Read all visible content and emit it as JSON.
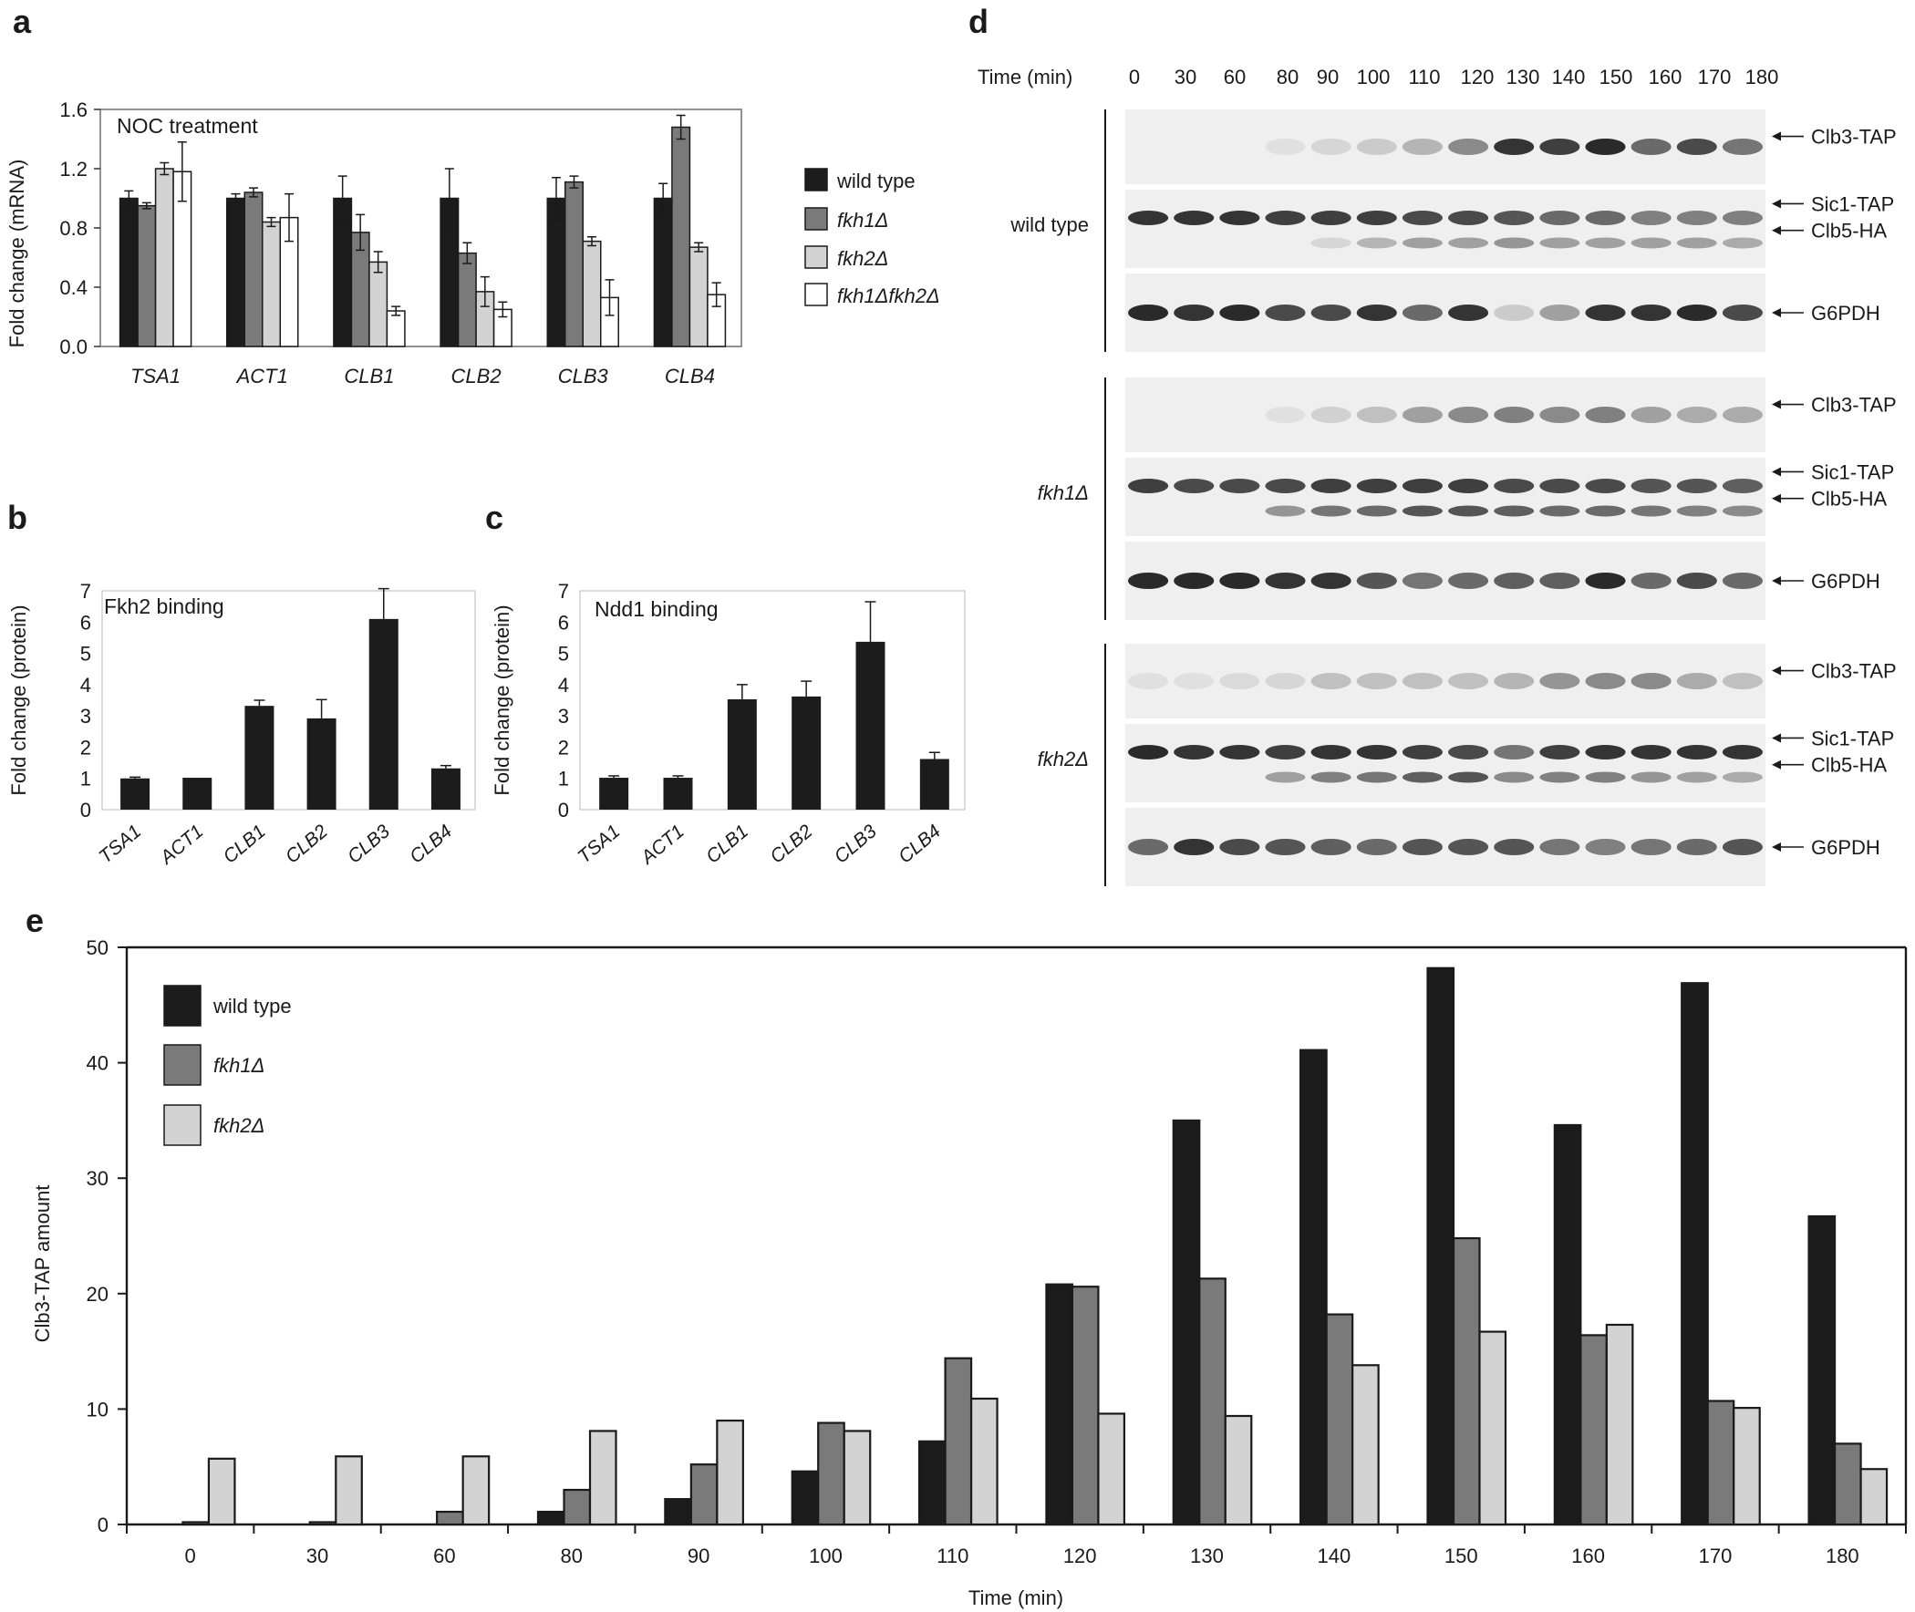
{
  "panel_labels": {
    "a": "a",
    "b": "b",
    "c": "c",
    "d": "d",
    "e": "e"
  },
  "colors": {
    "wild_type": "#1c1c1c",
    "fkh1": "#7a7a7a",
    "fkh2": "#d3d3d3",
    "fkh1fkh2": "#ffffff",
    "axis": "#333333"
  },
  "chart_data": [
    {
      "id": "a",
      "type": "bar",
      "title": "NOC  treatment",
      "ylabel": "Fold change (mRNA)",
      "xlabel": "",
      "ylim": [
        0,
        1.6
      ],
      "yticks": [
        "0.0",
        "0.4",
        "0.8",
        "1.2",
        "1.6"
      ],
      "categories": [
        "TSA1",
        "ACT1",
        "CLB1",
        "CLB2",
        "CLB3",
        "CLB4"
      ],
      "series": [
        {
          "name": "wild type",
          "values": [
            1.0,
            1.0,
            1.0,
            1.0,
            1.0,
            1.0
          ],
          "errors": [
            0.05,
            0.03,
            0.15,
            0.2,
            0.14,
            0.1
          ]
        },
        {
          "name": "fkh1Δ",
          "values": [
            0.95,
            1.04,
            0.77,
            0.63,
            1.11,
            1.48
          ],
          "errors": [
            0.02,
            0.03,
            0.12,
            0.07,
            0.04,
            0.08
          ]
        },
        {
          "name": "fkh2Δ",
          "values": [
            1.2,
            0.84,
            0.57,
            0.37,
            0.71,
            0.67
          ],
          "errors": [
            0.04,
            0.03,
            0.07,
            0.1,
            0.03,
            0.03
          ]
        },
        {
          "name": "fkh1Δfkh2Δ",
          "values": [
            1.18,
            0.87,
            0.24,
            0.25,
            0.33,
            0.35
          ],
          "errors": [
            0.2,
            0.16,
            0.03,
            0.05,
            0.12,
            0.08
          ]
        }
      ],
      "legend_position": "right"
    },
    {
      "id": "b",
      "type": "bar",
      "title": "Fkh2 binding",
      "ylabel": "Fold change (protein)",
      "xlabel": "",
      "ylim": [
        0,
        7
      ],
      "yticks": [
        "0",
        "1",
        "2",
        "3",
        "4",
        "5",
        "6",
        "7"
      ],
      "categories": [
        "TSA1",
        "ACT1",
        "CLB1",
        "CLB2",
        "CLB3",
        "CLB4"
      ],
      "values": [
        1.0,
        1.02,
        3.32,
        2.92,
        6.1,
        1.32
      ],
      "errors": [
        0.04,
        0,
        0.18,
        0.6,
        0.97,
        0.09
      ]
    },
    {
      "id": "c",
      "type": "bar",
      "title": "Ndd1 binding",
      "ylabel": "Fold change (protein)",
      "xlabel": "",
      "ylim": [
        0,
        7
      ],
      "yticks": [
        "0",
        "1",
        "2",
        "3",
        "4",
        "5",
        "6",
        "7"
      ],
      "categories": [
        "TSA1",
        "ACT1",
        "CLB1",
        "CLB2",
        "CLB3",
        "CLB4"
      ],
      "values": [
        1.02,
        1.02,
        3.53,
        3.62,
        5.37,
        1.62
      ],
      "errors": [
        0.06,
        0.06,
        0.47,
        0.49,
        1.28,
        0.21
      ]
    },
    {
      "id": "e",
      "type": "bar",
      "title": "",
      "ylabel": "Clb3-TAP amount",
      "xlabel": "Time (min)",
      "ylim": [
        0,
        50
      ],
      "yticks": [
        "0",
        "10",
        "20",
        "30",
        "40",
        "50"
      ],
      "categories": [
        "0",
        "30",
        "60",
        "80",
        "90",
        "100",
        "110",
        "120",
        "130",
        "140",
        "150",
        "160",
        "170",
        "180"
      ],
      "series": [
        {
          "name": "wild type",
          "values": [
            0,
            0,
            0,
            1.1,
            2.2,
            4.6,
            7.2,
            20.8,
            35.0,
            41.1,
            48.2,
            34.6,
            46.9,
            26.7
          ]
        },
        {
          "name": "fkh1Δ",
          "values": [
            0.2,
            0.2,
            1.1,
            3.0,
            5.2,
            8.8,
            14.4,
            20.6,
            21.3,
            18.2,
            24.8,
            16.4,
            10.7,
            7.0
          ]
        },
        {
          "name": "fkh2Δ",
          "values": [
            5.7,
            5.9,
            5.9,
            8.1,
            9.0,
            8.1,
            10.9,
            9.6,
            9.4,
            13.8,
            16.7,
            17.3,
            10.1,
            4.8
          ]
        }
      ],
      "legend_position": "top-left"
    }
  ],
  "blot": {
    "time_label": "Time (min)",
    "times": [
      "0",
      "30",
      "60",
      "80",
      "90",
      "100",
      "110",
      "120",
      "130",
      "140",
      "150",
      "160",
      "170",
      "180"
    ],
    "groups": [
      {
        "name": "wild type",
        "italic": false,
        "labels": [
          "Clb3-TAP",
          "Sic1-TAP",
          "Clb5-HA",
          "G6PDH"
        ]
      },
      {
        "name": "fkh1Δ",
        "italic": true,
        "labels": [
          "Clb3-TAP",
          "Sic1-TAP",
          "Clb5-HA",
          "G6PDH"
        ]
      },
      {
        "name": "fkh2Δ",
        "italic": true,
        "labels": [
          "Clb3-TAP",
          "Sic1-TAP",
          "Clb5-HA",
          "G6PDH"
        ]
      }
    ],
    "intensity": {
      "wild type": {
        "clb3": [
          0,
          0,
          0,
          0.05,
          0.1,
          0.15,
          0.25,
          0.45,
          0.85,
          0.8,
          0.9,
          0.6,
          0.75,
          0.55
        ],
        "sic1": [
          0.85,
          0.85,
          0.85,
          0.8,
          0.8,
          0.8,
          0.75,
          0.75,
          0.7,
          0.6,
          0.6,
          0.5,
          0.5,
          0.5
        ],
        "clb5": [
          0,
          0,
          0,
          0,
          0.1,
          0.25,
          0.35,
          0.35,
          0.4,
          0.35,
          0.35,
          0.35,
          0.35,
          0.3
        ],
        "g6pdh": [
          0.9,
          0.85,
          0.9,
          0.75,
          0.75,
          0.85,
          0.6,
          0.85,
          0.15,
          0.35,
          0.85,
          0.85,
          0.9,
          0.75
        ]
      },
      "fkh1Δ": {
        "clb3": [
          0,
          0,
          0,
          0.05,
          0.12,
          0.2,
          0.35,
          0.45,
          0.5,
          0.45,
          0.5,
          0.35,
          0.3,
          0.3
        ],
        "sic1": [
          0.8,
          0.75,
          0.75,
          0.75,
          0.8,
          0.8,
          0.8,
          0.8,
          0.75,
          0.75,
          0.75,
          0.7,
          0.7,
          0.65
        ],
        "clb5": [
          0,
          0,
          0,
          0.4,
          0.55,
          0.6,
          0.7,
          0.7,
          0.65,
          0.6,
          0.6,
          0.55,
          0.5,
          0.45
        ],
        "g6pdh": [
          0.9,
          0.9,
          0.9,
          0.85,
          0.85,
          0.7,
          0.55,
          0.6,
          0.65,
          0.65,
          0.9,
          0.6,
          0.75,
          0.6
        ]
      },
      "fkh2Δ": {
        "clb3": [
          0.05,
          0.05,
          0.08,
          0.1,
          0.2,
          0.2,
          0.2,
          0.2,
          0.25,
          0.4,
          0.45,
          0.45,
          0.3,
          0.2
        ],
        "sic1": [
          0.9,
          0.85,
          0.85,
          0.8,
          0.85,
          0.85,
          0.8,
          0.75,
          0.55,
          0.8,
          0.85,
          0.85,
          0.85,
          0.85
        ],
        "clb5": [
          0,
          0,
          0,
          0.35,
          0.5,
          0.55,
          0.65,
          0.7,
          0.45,
          0.5,
          0.5,
          0.4,
          0.35,
          0.3
        ],
        "g6pdh": [
          0.6,
          0.85,
          0.75,
          0.7,
          0.65,
          0.6,
          0.7,
          0.7,
          0.7,
          0.55,
          0.5,
          0.55,
          0.6,
          0.7
        ]
      }
    }
  }
}
